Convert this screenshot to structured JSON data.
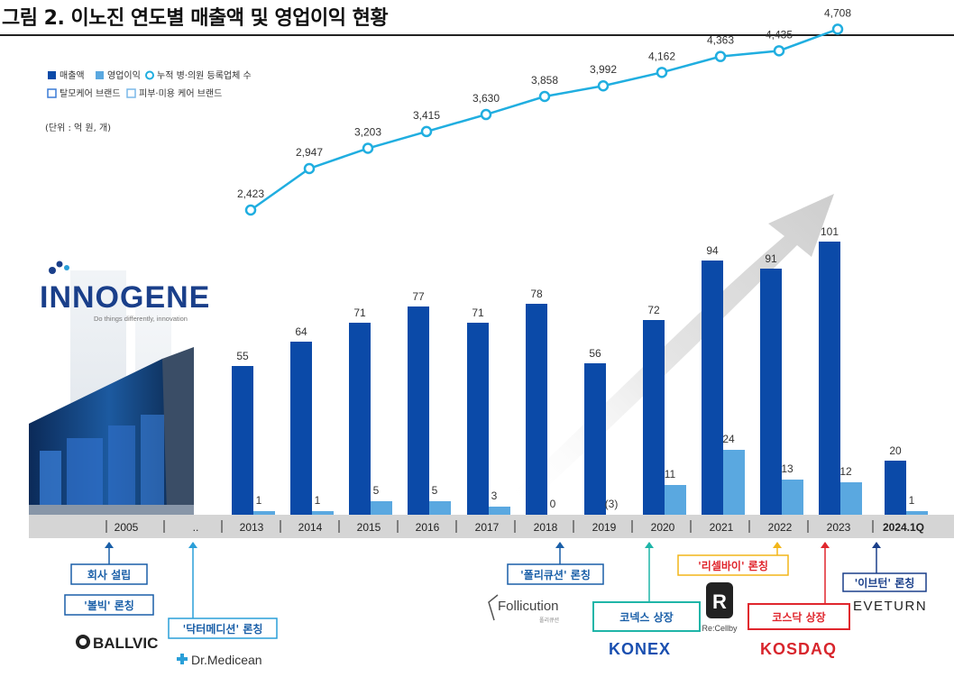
{
  "header": {
    "title": "그림 2. 이노진 연도별 매출액 및 영업이익 현황"
  },
  "legend": {
    "items": [
      {
        "label": "매출액",
        "color": "#0b4aa8",
        "shape": "square"
      },
      {
        "label": "영업이익",
        "color": "#5aa8e0",
        "shape": "square"
      },
      {
        "label": "누적 병·의원 등록업체 수",
        "color": "#20aee0",
        "shape": "circle"
      },
      {
        "label": "탈모케어 브랜드",
        "color": "#3a7bd5",
        "shape": "outline-square"
      },
      {
        "label": "피부·미용 케어 브랜드",
        "color": "#7ab8e8",
        "shape": "outline-square"
      }
    ],
    "unit": "(단위 : 억 원, 개)"
  },
  "chart_data": {
    "type": "bar",
    "categories": [
      "2005",
      "..",
      "2013",
      "2014",
      "2015",
      "2016",
      "2017",
      "2018",
      "2019",
      "2020",
      "2021",
      "2022",
      "2023",
      "2024.1Q"
    ],
    "series": [
      {
        "name": "매출액",
        "type": "bar",
        "color": "#0b4aa8",
        "values": [
          null,
          null,
          55,
          64,
          71,
          77,
          71,
          78,
          56,
          72,
          94,
          91,
          101,
          20
        ],
        "labels": [
          "",
          "",
          "55",
          "64",
          "71",
          "77",
          "71",
          "78",
          "56",
          "72",
          "94",
          "91",
          "101",
          "20"
        ]
      },
      {
        "name": "영업이익",
        "type": "bar",
        "color": "#5aa8e0",
        "values": [
          null,
          null,
          1,
          1,
          5,
          5,
          3,
          0,
          -3,
          11,
          24,
          13,
          12,
          1
        ],
        "labels": [
          "",
          "",
          "1",
          "1",
          "5",
          "5",
          "3",
          "0",
          "(3)",
          "11",
          "24",
          "13",
          "12",
          "1"
        ]
      },
      {
        "name": "누적 병·의원 등록업체 수",
        "type": "line",
        "color": "#20aee0",
        "values": [
          null,
          null,
          2423,
          2947,
          3203,
          3415,
          3630,
          3858,
          3992,
          4162,
          4363,
          4435,
          4708,
          null
        ],
        "labels": [
          "",
          "",
          "2,423",
          "2,947",
          "3,203",
          "3,415",
          "3,630",
          "3,858",
          "3,992",
          "4,162",
          "4,363",
          "4,435",
          "4,708",
          ""
        ]
      }
    ],
    "ylim": [
      0,
      110
    ],
    "xlabel": "",
    "ylabel": ""
  },
  "company_logo": {
    "name": "INNOGENE",
    "tagline": "Do things differently, innovation"
  },
  "events": [
    {
      "label": "회사 설립",
      "color": "#1a5fa8",
      "category": "2005"
    },
    {
      "label": "'볼빅' 론칭",
      "color": "#1a5fa8",
      "category": "2005"
    },
    {
      "label": "'닥터메디션' 론칭",
      "color": "#2a9fd8",
      "category": ".."
    },
    {
      "label": "'폴리큐션' 론칭",
      "color": "#1a5fa8",
      "category": "2019"
    },
    {
      "label": "코넥스 상장",
      "color": "#1fb5a8",
      "category": "2020"
    },
    {
      "label": "'리셀바이' 론칭",
      "color": "#f2b619",
      "category": "2022"
    },
    {
      "label": "코스닥 상장",
      "color": "#e0262d",
      "category": "2023"
    },
    {
      "label": "'이브턴' 론칭",
      "color": "#1a3f8a",
      "category": "2024.1Q"
    }
  ],
  "brands": {
    "ballvic": "BALLVIC",
    "drmedicean": "Dr.Medicean",
    "follicution": "Follicution",
    "follicution_sub": "폴리큐션",
    "konex": "KONEX",
    "recellby": "Re:Cellby",
    "kosdaq": "KOSDAQ",
    "eveturn": "EVETURN"
  }
}
